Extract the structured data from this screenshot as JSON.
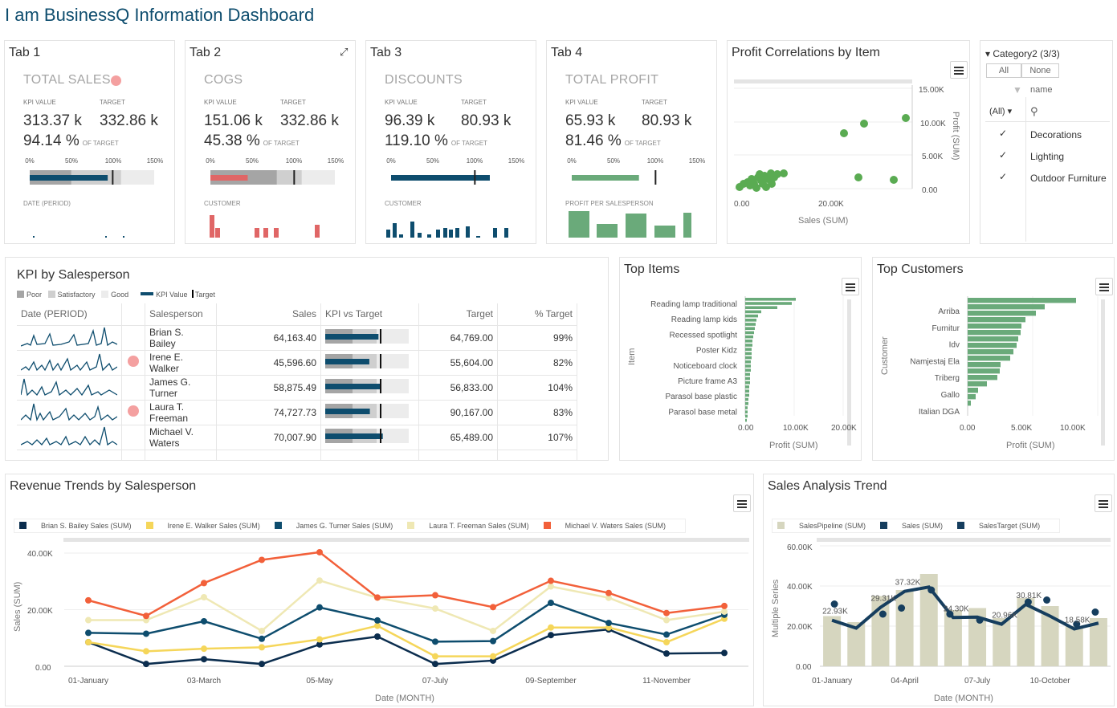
{
  "title": "I am BusinessQ Information Dashboard",
  "kpis": [
    {
      "tab": "Tab 1",
      "title": "TOTAL SALES",
      "kpi_value_label": "KPI VALUE",
      "target_label": "TARGET",
      "value": "313.37 k",
      "target": "332.86 k",
      "pct": "94.14 %",
      "of_target": "OF TARGET",
      "value_pct": 0.94,
      "sub": "DATE (PERIOD)",
      "alert": true,
      "bar_color": "#0e4d6e",
      "bar_style": "bullet-grey"
    },
    {
      "tab": "Tab 2",
      "title": "COGS",
      "kpi_value_label": "KPI VALUE",
      "target_label": "TARGET",
      "value": "151.06 k",
      "target": "332.86 k",
      "pct": "45.38 %",
      "of_target": "OF TARGET",
      "value_pct": 0.45,
      "sub": "CUSTOMER",
      "alert": false,
      "bar_color": "#e06666",
      "bar_style": "bullet-grey"
    },
    {
      "tab": "Tab 3",
      "title": "DISCOUNTS",
      "kpi_value_label": "KPI VALUE",
      "target_label": "TARGET",
      "value": "96.39 k",
      "target": "80.93 k",
      "pct": "119.10 %",
      "of_target": "OF TARGET",
      "value_pct": 1.19,
      "sub": "CUSTOMER",
      "alert": false,
      "bar_color": "#0e4d6e",
      "bar_style": "plain"
    },
    {
      "tab": "Tab 4",
      "title": "TOTAL PROFIT",
      "kpi_value_label": "KPI VALUE",
      "target_label": "TARGET",
      "value": "65.93 k",
      "target": "80.93 k",
      "pct": "81.46 %",
      "of_target": "OF TARGET",
      "value_pct": 0.81,
      "sub": "PROFIT PER SALESPERSON",
      "alert": false,
      "bar_color": "#6aaa7a",
      "bar_style": "plain"
    }
  ],
  "kpi_ticks": [
    "0%",
    "50%",
    "100%",
    "150%"
  ],
  "profit_corr": {
    "title": "Profit Correlations by Item",
    "xlabel": "Sales (SUM)",
    "ylabel": "Profit (SUM)",
    "xticks": [
      "0.00",
      "20.00K"
    ],
    "yticks": [
      "15.00K",
      "10.00K",
      "5.00K",
      "0.00"
    ]
  },
  "filter": {
    "title": "Category2 (3/3)",
    "all": "All",
    "none": "None",
    "field": "name",
    "select": "(All)",
    "items": [
      "Decorations",
      "Lighting",
      "Outdoor Furniture"
    ]
  },
  "kpi_table": {
    "title": "KPI by Salesperson",
    "legend": [
      "Poor",
      "Satisfactory",
      "Good",
      "KPI Value",
      "Target"
    ],
    "headers": [
      "Date (PERIOD)",
      "",
      "Salesperson",
      "Sales",
      "KPI vs Target",
      "Target",
      "% Target"
    ],
    "rows": [
      {
        "name": "Brian S. Bailey",
        "sales": "64,163.40",
        "target": "64,769.00",
        "pct": "99%",
        "alert": false,
        "ratio": 0.99
      },
      {
        "name": "Irene E. Walker",
        "sales": "45,596.60",
        "target": "55,604.00",
        "pct": "82%",
        "alert": true,
        "ratio": 0.82
      },
      {
        "name": "James G. Turner",
        "sales": "58,875.49",
        "target": "56,833.00",
        "pct": "104%",
        "alert": false,
        "ratio": 1.04
      },
      {
        "name": "Laura T. Freeman",
        "sales": "74,727.73",
        "target": "90,167.00",
        "pct": "83%",
        "alert": true,
        "ratio": 0.83
      },
      {
        "name": "Michael V. Waters",
        "sales": "70,007.90",
        "target": "65,489.00",
        "pct": "107%",
        "alert": false,
        "ratio": 1.07
      }
    ]
  },
  "top_items": {
    "title": "Top Items",
    "ylabel": "Item",
    "xlabel": "Profit (SUM)",
    "xticks": [
      "0.00",
      "10.00K",
      "20.00K"
    ],
    "labels": [
      "Reading lamp traditional",
      "Reading lamp kids",
      "Recessed spotlight",
      "Poster Kidz",
      "Noticeboard clock",
      "Picture frame A3",
      "Parasol base plastic",
      "Parasol base metal"
    ]
  },
  "top_customers": {
    "title": "Top Customers",
    "ylabel": "Customer",
    "xlabel": "Profit (SUM)",
    "xticks": [
      "0.00",
      "5.00K",
      "10.00K"
    ],
    "labels": [
      "Arriba",
      "Furnitur",
      "Idv",
      "Namjestaj Ela",
      "Triberg",
      "Gallo",
      "Italian DGA"
    ]
  },
  "chart_data": [
    {
      "type": "line",
      "title": "Revenue Trends by Salesperson",
      "xlabel": "Date (MONTH)",
      "ylabel": "Sales (SUM)",
      "x": [
        "01-January",
        "02-February",
        "03-March",
        "04-April",
        "05-May",
        "06-June",
        "07-July",
        "08-August",
        "09-September",
        "10-October",
        "11-November",
        "12-December"
      ],
      "xticks_shown": [
        "01-January",
        "03-March",
        "05-May",
        "07-July",
        "09-September",
        "11-November"
      ],
      "yticks": [
        "40.00K",
        "20.00K",
        "0.00"
      ],
      "ylim": [
        0,
        45000
      ],
      "series": [
        {
          "name": "Brian S. Bailey Sales (SUM)",
          "color": "#0b2d4e",
          "values": [
            8500,
            800,
            2500,
            800,
            7700,
            10500,
            800,
            2000,
            11000,
            13000,
            4500,
            4700
          ]
        },
        {
          "name": "Irene E. Walker Sales (SUM)",
          "color": "#f5d65a",
          "values": [
            8500,
            5300,
            6200,
            6700,
            9500,
            14300,
            3500,
            3500,
            13700,
            13700,
            8500,
            16800
          ]
        },
        {
          "name": "James G. Turner Sales (SUM)",
          "color": "#0e4d6e",
          "values": [
            11800,
            11500,
            15900,
            9700,
            20800,
            16200,
            8700,
            8900,
            22400,
            15300,
            11200,
            18200
          ]
        },
        {
          "name": "Laura T. Freeman Sales (SUM)",
          "color": "#efe8b4",
          "values": [
            16300,
            16300,
            24400,
            12500,
            30300,
            24200,
            20400,
            12500,
            28200,
            24200,
            16300,
            19300
          ]
        },
        {
          "name": "Michael V. Waters Sales (SUM)",
          "color": "#f2603a",
          "values": [
            23300,
            17800,
            29400,
            37600,
            40300,
            24300,
            25100,
            20900,
            30200,
            25900,
            18800,
            21300
          ]
        }
      ]
    },
    {
      "type": "bar",
      "title": "Sales Analysis Trend",
      "xlabel": "Date (MONTH)",
      "ylabel": "Multiple Series",
      "x": [
        "01-January",
        "02-February",
        "03-March",
        "04-April",
        "05-May",
        "06-June",
        "07-July",
        "08-August",
        "09-September",
        "10-October",
        "11-November",
        "12-December"
      ],
      "xticks_shown": [
        "01-January",
        "04-April",
        "07-July",
        "10-October"
      ],
      "yticks": [
        "60.00K",
        "40.00K",
        "20.00K",
        "0.00"
      ],
      "ylim": [
        0,
        60000
      ],
      "series": [
        {
          "name": "SalesPipeline (SUM)",
          "color": "#d6d6bf",
          "values": [
            25000,
            22000,
            35000,
            38000,
            46000,
            28000,
            29000,
            24000,
            34000,
            30000,
            20000,
            24000
          ]
        },
        {
          "name": "Sales (SUM)",
          "color": "#163e5e",
          "values": [
            22930,
            19000,
            29310,
            37320,
            39500,
            24300,
            24500,
            20960,
            30810,
            25000,
            18580,
            21500
          ]
        },
        {
          "name": "SalesTarget (SUM)",
          "color": "#163e5e",
          "values": [
            31000,
            null,
            26000,
            29000,
            38000,
            26000,
            23000,
            null,
            32000,
            33000,
            21000,
            27000
          ]
        }
      ],
      "data_labels": [
        "22.93K",
        "29.31K",
        "37.32K",
        "24.30K",
        "20.96K",
        "30.81K",
        "18.58K"
      ]
    }
  ]
}
